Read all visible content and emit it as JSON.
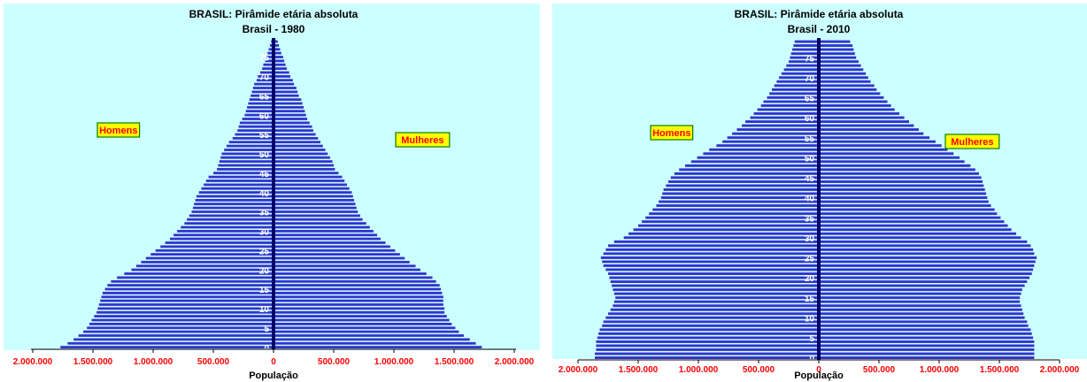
{
  "colors": {
    "plot_bg": "#ccffff",
    "bar": "#3333cc",
    "axis": "#000066",
    "tick_label": "#ff0000",
    "legend_bg": "#ffff00",
    "legend_border": "#008000",
    "legend_text": "#ff0000"
  },
  "chart_data": [
    {
      "type": "bar",
      "orientation": "horizontal-pyramid",
      "title": "BRASIL: Pirâmide etária absoluta",
      "subtitle": "Brasil - 1980",
      "xlabel": "População",
      "xlim": [
        -2000000,
        2000000
      ],
      "xticks": [
        "2.000.000",
        "1.500.000",
        "1.000.000",
        "500.000",
        "0",
        "500.000",
        "1.000.000",
        "1.500.000",
        "2.000.000"
      ],
      "age_ticks": [
        "0",
        "5",
        "10",
        "15",
        "20",
        "25",
        "30",
        "35",
        "40",
        "45",
        "50",
        "55",
        "60",
        "65",
        "70",
        "75"
      ],
      "age_tick_values": [
        0,
        5,
        10,
        15,
        20,
        25,
        30,
        35,
        40,
        45,
        50,
        55,
        60,
        65,
        70,
        75
      ],
      "age_max": 80,
      "series": [
        {
          "name": "Homens",
          "side": "left",
          "values": [
            1770000,
            1710000,
            1660000,
            1620000,
            1580000,
            1550000,
            1530000,
            1510000,
            1490000,
            1470000,
            1460000,
            1450000,
            1440000,
            1430000,
            1420000,
            1400000,
            1380000,
            1350000,
            1300000,
            1240000,
            1180000,
            1140000,
            1100000,
            1060000,
            1020000,
            980000,
            940000,
            900000,
            860000,
            830000,
            800000,
            770000,
            740000,
            720000,
            700000,
            680000,
            670000,
            660000,
            650000,
            640000,
            620000,
            600000,
            580000,
            560000,
            540000,
            500000,
            470000,
            460000,
            450000,
            440000,
            430000,
            410000,
            390000,
            370000,
            340000,
            320000,
            300000,
            290000,
            280000,
            260000,
            240000,
            230000,
            220000,
            210000,
            200000,
            190000,
            180000,
            170000,
            160000,
            140000,
            130000,
            110000,
            95000,
            85000,
            70000,
            60000,
            50000,
            40000,
            30000,
            20000
          ]
        },
        {
          "name": "Mulheres",
          "side": "right",
          "values": [
            1730000,
            1680000,
            1630000,
            1580000,
            1540000,
            1510000,
            1480000,
            1460000,
            1440000,
            1420000,
            1420000,
            1410000,
            1410000,
            1410000,
            1400000,
            1390000,
            1380000,
            1350000,
            1320000,
            1270000,
            1220000,
            1180000,
            1130000,
            1090000,
            1050000,
            1010000,
            970000,
            930000,
            890000,
            860000,
            830000,
            800000,
            770000,
            740000,
            720000,
            700000,
            690000,
            680000,
            670000,
            660000,
            650000,
            630000,
            610000,
            590000,
            570000,
            540000,
            510000,
            500000,
            490000,
            470000,
            450000,
            430000,
            410000,
            390000,
            370000,
            350000,
            330000,
            320000,
            300000,
            280000,
            270000,
            260000,
            250000,
            240000,
            230000,
            210000,
            200000,
            190000,
            170000,
            160000,
            140000,
            130000,
            110000,
            100000,
            90000,
            80000,
            65000,
            55000,
            45000,
            35000
          ]
        }
      ],
      "legend": {
        "left": "Homens",
        "right": "Mulheres"
      }
    },
    {
      "type": "bar",
      "orientation": "horizontal-pyramid",
      "title": "BRASIL: Pirâmide etária absoluta",
      "subtitle": "Brasil - 2010",
      "xlabel": "População",
      "xlim": [
        -2000000,
        2000000
      ],
      "xticks": [
        "2.000.000",
        "1.500.000",
        "1.000.000",
        "500.000",
        "0",
        "500.000",
        "1.000.000",
        "1.500.000",
        "2.000.000"
      ],
      "age_ticks": [
        "0",
        "5",
        "10",
        "15",
        "20",
        "25",
        "30",
        "35",
        "40",
        "45",
        "50",
        "55",
        "60",
        "65",
        "70",
        "75"
      ],
      "age_tick_values": [
        0,
        5,
        10,
        15,
        20,
        25,
        30,
        35,
        40,
        45,
        50,
        55,
        60,
        65,
        70,
        75
      ],
      "age_max": 80,
      "series": [
        {
          "name": "Homens",
          "side": "left",
          "values": [
            1860000,
            1860000,
            1850000,
            1850000,
            1850000,
            1840000,
            1830000,
            1820000,
            1800000,
            1790000,
            1770000,
            1750000,
            1730000,
            1710000,
            1700000,
            1690000,
            1700000,
            1710000,
            1720000,
            1730000,
            1740000,
            1750000,
            1770000,
            1790000,
            1800000,
            1810000,
            1790000,
            1770000,
            1750000,
            1700000,
            1620000,
            1580000,
            1540000,
            1500000,
            1470000,
            1440000,
            1410000,
            1380000,
            1350000,
            1330000,
            1310000,
            1300000,
            1290000,
            1270000,
            1250000,
            1230000,
            1200000,
            1160000,
            1110000,
            1060000,
            1010000,
            960000,
            910000,
            850000,
            800000,
            760000,
            720000,
            680000,
            640000,
            610000,
            570000,
            540000,
            510000,
            480000,
            460000,
            430000,
            410000,
            390000,
            370000,
            350000,
            330000,
            310000,
            290000,
            270000,
            250000,
            240000,
            230000,
            220000,
            210000,
            200000
          ]
        },
        {
          "name": "Mulheres",
          "side": "right",
          "values": [
            1790000,
            1790000,
            1790000,
            1790000,
            1790000,
            1780000,
            1770000,
            1760000,
            1740000,
            1730000,
            1710000,
            1700000,
            1690000,
            1680000,
            1670000,
            1670000,
            1680000,
            1690000,
            1710000,
            1730000,
            1750000,
            1770000,
            1780000,
            1790000,
            1800000,
            1810000,
            1790000,
            1780000,
            1760000,
            1730000,
            1680000,
            1640000,
            1600000,
            1570000,
            1540000,
            1510000,
            1480000,
            1460000,
            1430000,
            1410000,
            1400000,
            1390000,
            1380000,
            1370000,
            1360000,
            1350000,
            1330000,
            1300000,
            1260000,
            1210000,
            1170000,
            1120000,
            1070000,
            1020000,
            970000,
            920000,
            870000,
            830000,
            790000,
            750000,
            710000,
            670000,
            630000,
            600000,
            570000,
            540000,
            510000,
            480000,
            460000,
            430000,
            410000,
            390000,
            370000,
            350000,
            330000,
            310000,
            300000,
            290000,
            280000,
            260000
          ]
        }
      ],
      "legend": {
        "left": "Homens",
        "right": "Mulheres"
      }
    }
  ]
}
